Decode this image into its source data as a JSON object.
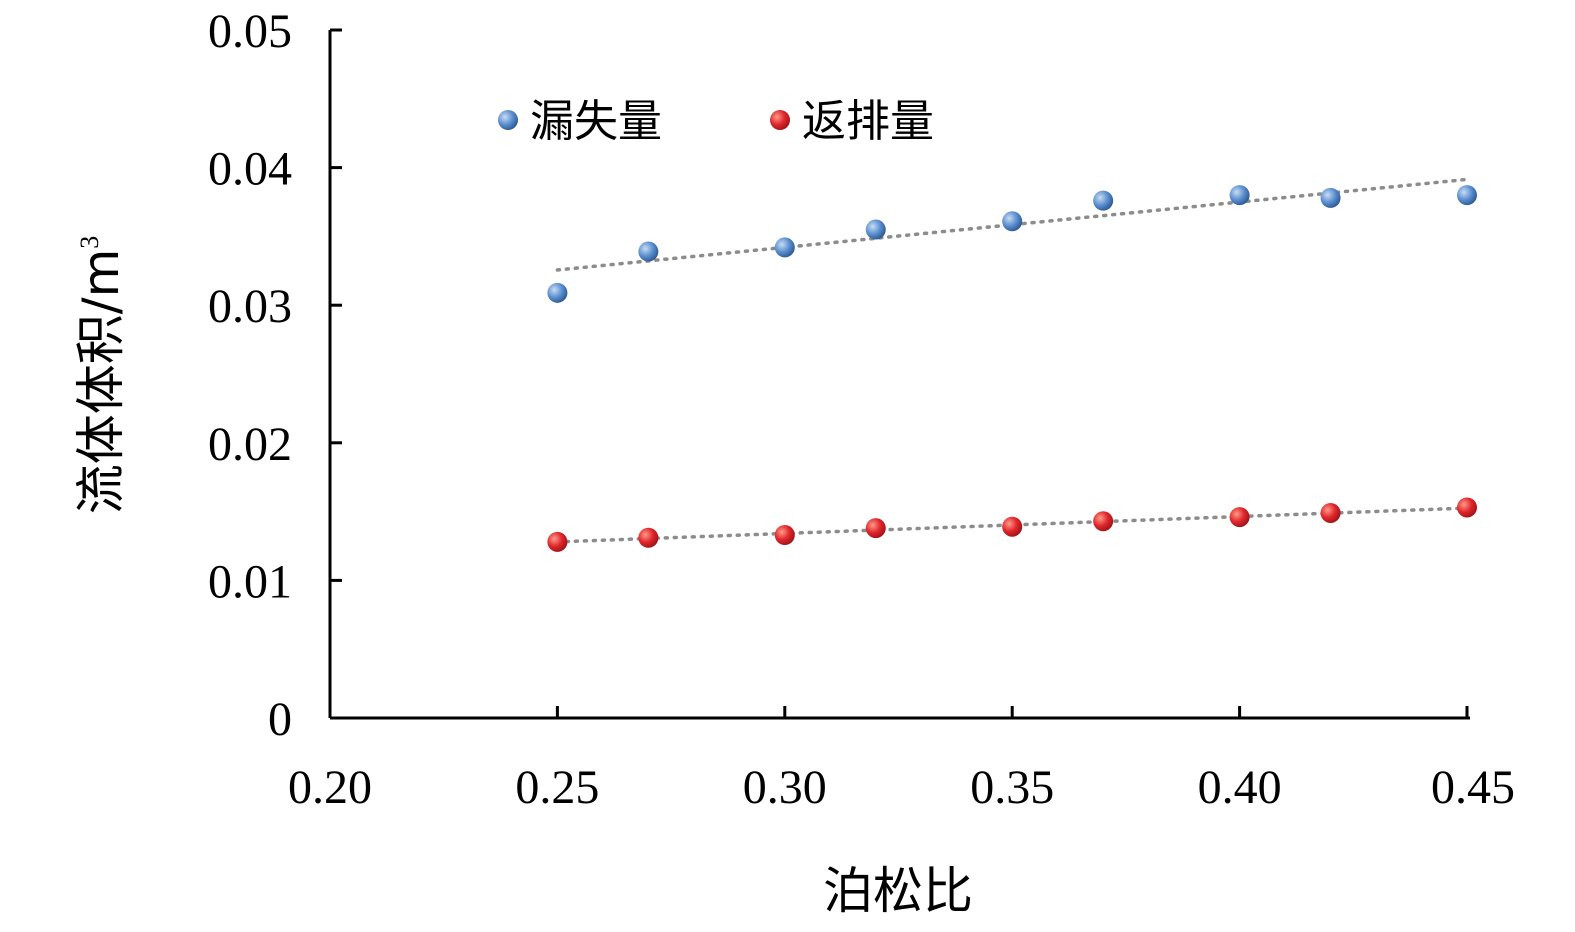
{
  "chart_data": {
    "type": "scatter",
    "xlabel": "泊松比",
    "ylabel": "流体体积/m",
    "ylabel_sup": "3",
    "xlim": [
      0.2,
      0.45
    ],
    "ylim": [
      0,
      0.05
    ],
    "x_ticks": [
      "0.20",
      "0.25",
      "0.30",
      "0.35",
      "0.40",
      "0.45"
    ],
    "y_ticks": [
      "0",
      "0.01",
      "0.02",
      "0.03",
      "0.04",
      "0.05"
    ],
    "x_tick_values": [
      0.2,
      0.25,
      0.3,
      0.35,
      0.4,
      0.45
    ],
    "y_tick_values": [
      0,
      0.01,
      0.02,
      0.03,
      0.04,
      0.05
    ],
    "grid": false,
    "legend_position": "top-left",
    "series": [
      {
        "name": "漏失量",
        "color": "#4a7fbf",
        "marker": "circle",
        "trendline": "dotted",
        "x": [
          0.25,
          0.27,
          0.3,
          0.32,
          0.35,
          0.37,
          0.4,
          0.42,
          0.45
        ],
        "y": [
          0.0309,
          0.0339,
          0.0342,
          0.0355,
          0.0361,
          0.0376,
          0.038,
          0.0378,
          0.038
        ]
      },
      {
        "name": "返排量",
        "color": "#e0262b",
        "marker": "circle",
        "trendline": "dotted",
        "x": [
          0.25,
          0.27,
          0.3,
          0.32,
          0.35,
          0.37,
          0.4,
          0.42,
          0.45
        ],
        "y": [
          0.0128,
          0.0131,
          0.0133,
          0.0138,
          0.0139,
          0.0143,
          0.0146,
          0.0149,
          0.0153
        ]
      }
    ]
  }
}
